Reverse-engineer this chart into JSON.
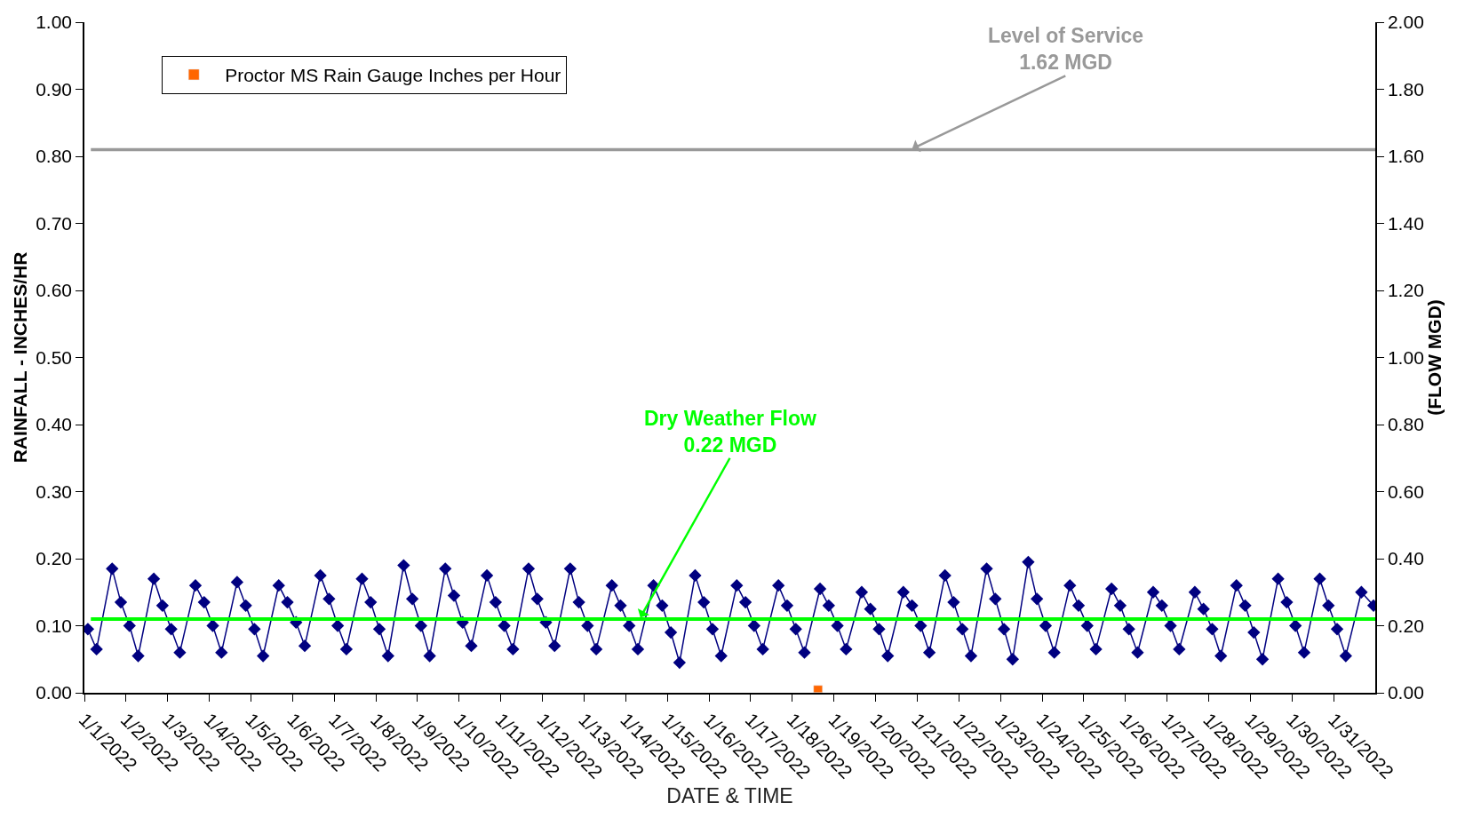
{
  "chart_data": {
    "type": "line",
    "xlabel": "DATE & TIME",
    "ylabel": "RAINFALL - INCHES/HR",
    "y2label": "(FLOW MGD)",
    "xlim": [
      "2022-01-01",
      "2022-02-01"
    ],
    "xticks": [
      {
        "value": "2022-01-01",
        "label": "1/1/2022"
      },
      {
        "value": "2022-01-02",
        "label": "1/2/2022"
      },
      {
        "value": "2022-01-03",
        "label": "1/3/2022"
      },
      {
        "value": "2022-01-04",
        "label": "1/4/2022"
      },
      {
        "value": "2022-01-05",
        "label": "1/5/2022"
      },
      {
        "value": "2022-01-06",
        "label": "1/6/2022"
      },
      {
        "value": "2022-01-07",
        "label": "1/7/2022"
      },
      {
        "value": "2022-01-08",
        "label": "1/8/2022"
      },
      {
        "value": "2022-01-09",
        "label": "1/9/2022"
      },
      {
        "value": "2022-01-10",
        "label": "1/10/2022"
      },
      {
        "value": "2022-01-11",
        "label": "1/11/2022"
      },
      {
        "value": "2022-01-12",
        "label": "1/12/2022"
      },
      {
        "value": "2022-01-13",
        "label": "1/13/2022"
      },
      {
        "value": "2022-01-14",
        "label": "1/14/2022"
      },
      {
        "value": "2022-01-15",
        "label": "1/15/2022"
      },
      {
        "value": "2022-01-16",
        "label": "1/16/2022"
      },
      {
        "value": "2022-01-17",
        "label": "1/17/2022"
      },
      {
        "value": "2022-01-18",
        "label": "1/18/2022"
      },
      {
        "value": "2022-01-19",
        "label": "1/19/2022"
      },
      {
        "value": "2022-01-20",
        "label": "1/20/2022"
      },
      {
        "value": "2022-01-21",
        "label": "1/21/2022"
      },
      {
        "value": "2022-01-22",
        "label": "1/22/2022"
      },
      {
        "value": "2022-01-23",
        "label": "1/23/2022"
      },
      {
        "value": "2022-01-24",
        "label": "1/24/2022"
      },
      {
        "value": "2022-01-25",
        "label": "1/25/2022"
      },
      {
        "value": "2022-01-26",
        "label": "1/26/2022"
      },
      {
        "value": "2022-01-27",
        "label": "1/27/2022"
      },
      {
        "value": "2022-01-28",
        "label": "1/28/2022"
      },
      {
        "value": "2022-01-29",
        "label": "1/29/2022"
      },
      {
        "value": "2022-01-30",
        "label": "1/30/2022"
      },
      {
        "value": "2022-01-31",
        "label": "1/31/2022"
      }
    ],
    "ylim": [
      0,
      1
    ],
    "yticks": [
      {
        "value": 0,
        "label": "0.00"
      },
      {
        "value": 0.1,
        "label": "0.10"
      },
      {
        "value": 0.2,
        "label": "0.20"
      },
      {
        "value": 0.3,
        "label": "0.30"
      },
      {
        "value": 0.4,
        "label": "0.40"
      },
      {
        "value": 0.5,
        "label": "0.50"
      },
      {
        "value": 0.6,
        "label": "0.60"
      },
      {
        "value": 0.7,
        "label": "0.70"
      },
      {
        "value": 0.8,
        "label": "0.80"
      },
      {
        "value": 0.9,
        "label": "0.90"
      },
      {
        "value": 1,
        "label": "1.00"
      }
    ],
    "y2lim": [
      0,
      2
    ],
    "y2ticks": [
      {
        "value": 0,
        "label": "0.00"
      },
      {
        "value": 0.2,
        "label": "0.20"
      },
      {
        "value": 0.4,
        "label": "0.40"
      },
      {
        "value": 0.6,
        "label": "0.60"
      },
      {
        "value": 0.8,
        "label": "0.80"
      },
      {
        "value": 1,
        "label": "1.00"
      },
      {
        "value": 1.2,
        "label": "1.20"
      },
      {
        "value": 1.4,
        "label": "1.40"
      },
      {
        "value": 1.6,
        "label": "1.60"
      },
      {
        "value": 1.8,
        "label": "1.80"
      },
      {
        "value": 2,
        "label": "2.00"
      }
    ],
    "legend": "top left",
    "ref_lines": [
      {
        "axis": "y2",
        "value": 1.62,
        "label": "Level of Service\n1.62 MGD",
        "color": "#999999"
      },
      {
        "axis": "y2",
        "value": 0.22,
        "label": "Dry Weather Flow\n0.22 MGD",
        "color": "#00ff00"
      }
    ],
    "series": [
      {
        "name": "Proctor MS Rain Gauge Inches per Hour",
        "type": "bar",
        "color": "#ff6600",
        "x": [
          "2022-01-18T15:00"
        ],
        "values": [
          0.01
        ]
      },
      {
        "axis": "y2",
        "color": "#000080",
        "marker": "diamond",
        "x": [
          "2022-01-01T02:00",
          "2022-01-01T07:00",
          "2022-01-01T16:00",
          "2022-01-01T21:00",
          "2022-01-02T02:00",
          "2022-01-02T07:00",
          "2022-01-02T16:00",
          "2022-01-02T21:00",
          "2022-01-03T02:00",
          "2022-01-03T07:00",
          "2022-01-03T16:00",
          "2022-01-03T21:00",
          "2022-01-04T02:00",
          "2022-01-04T07:00",
          "2022-01-04T16:00",
          "2022-01-04T21:00",
          "2022-01-05T02:00",
          "2022-01-05T07:00",
          "2022-01-05T16:00",
          "2022-01-05T21:00",
          "2022-01-06T02:00",
          "2022-01-06T07:00",
          "2022-01-06T16:00",
          "2022-01-06T21:00",
          "2022-01-07T02:00",
          "2022-01-07T07:00",
          "2022-01-07T16:00",
          "2022-01-07T21:00",
          "2022-01-08T02:00",
          "2022-01-08T07:00",
          "2022-01-08T16:00",
          "2022-01-08T21:00",
          "2022-01-09T02:00",
          "2022-01-09T07:00",
          "2022-01-09T16:00",
          "2022-01-09T21:00",
          "2022-01-10T02:00",
          "2022-01-10T07:00",
          "2022-01-10T16:00",
          "2022-01-10T21:00",
          "2022-01-11T02:00",
          "2022-01-11T07:00",
          "2022-01-11T16:00",
          "2022-01-11T21:00",
          "2022-01-12T02:00",
          "2022-01-12T07:00",
          "2022-01-12T16:00",
          "2022-01-12T21:00",
          "2022-01-13T02:00",
          "2022-01-13T07:00",
          "2022-01-13T16:00",
          "2022-01-13T21:00",
          "2022-01-14T02:00",
          "2022-01-14T07:00",
          "2022-01-14T16:00",
          "2022-01-14T21:00",
          "2022-01-15T02:00",
          "2022-01-15T07:00",
          "2022-01-15T16:00",
          "2022-01-15T21:00",
          "2022-01-16T02:00",
          "2022-01-16T07:00",
          "2022-01-16T16:00",
          "2022-01-16T21:00",
          "2022-01-17T02:00",
          "2022-01-17T07:00",
          "2022-01-17T16:00",
          "2022-01-17T21:00",
          "2022-01-18T02:00",
          "2022-01-18T07:00",
          "2022-01-18T16:00",
          "2022-01-18T21:00",
          "2022-01-19T02:00",
          "2022-01-19T07:00",
          "2022-01-19T16:00",
          "2022-01-19T21:00",
          "2022-01-20T02:00",
          "2022-01-20T07:00",
          "2022-01-20T16:00",
          "2022-01-20T21:00",
          "2022-01-21T02:00",
          "2022-01-21T07:00",
          "2022-01-21T16:00",
          "2022-01-21T21:00",
          "2022-01-22T02:00",
          "2022-01-22T07:00",
          "2022-01-22T16:00",
          "2022-01-22T21:00",
          "2022-01-23T02:00",
          "2022-01-23T07:00",
          "2022-01-23T16:00",
          "2022-01-23T21:00",
          "2022-01-24T02:00",
          "2022-01-24T07:00",
          "2022-01-24T16:00",
          "2022-01-24T21:00",
          "2022-01-25T02:00",
          "2022-01-25T07:00",
          "2022-01-25T16:00",
          "2022-01-25T21:00",
          "2022-01-26T02:00",
          "2022-01-26T07:00",
          "2022-01-26T16:00",
          "2022-01-26T21:00",
          "2022-01-27T02:00",
          "2022-01-27T07:00",
          "2022-01-27T16:00",
          "2022-01-27T21:00",
          "2022-01-28T02:00",
          "2022-01-28T07:00",
          "2022-01-28T16:00",
          "2022-01-28T21:00",
          "2022-01-29T02:00",
          "2022-01-29T07:00",
          "2022-01-29T16:00",
          "2022-01-29T21:00",
          "2022-01-30T02:00",
          "2022-01-30T07:00",
          "2022-01-30T16:00",
          "2022-01-30T21:00",
          "2022-01-31T02:00",
          "2022-01-31T07:00",
          "2022-01-31T16:00",
          "2022-01-31T23:00"
        ],
        "values": [
          0.19,
          0.13,
          0.37,
          0.27,
          0.2,
          0.11,
          0.34,
          0.26,
          0.19,
          0.12,
          0.32,
          0.27,
          0.2,
          0.12,
          0.33,
          0.26,
          0.19,
          0.11,
          0.32,
          0.27,
          0.21,
          0.14,
          0.35,
          0.28,
          0.2,
          0.13,
          0.34,
          0.27,
          0.19,
          0.11,
          0.38,
          0.28,
          0.2,
          0.11,
          0.37,
          0.29,
          0.21,
          0.14,
          0.35,
          0.27,
          0.2,
          0.13,
          0.37,
          0.28,
          0.21,
          0.14,
          0.37,
          0.27,
          0.2,
          0.13,
          0.32,
          0.26,
          0.2,
          0.13,
          0.32,
          0.26,
          0.18,
          0.09,
          0.35,
          0.27,
          0.19,
          0.11,
          0.32,
          0.27,
          0.2,
          0.13,
          0.32,
          0.26,
          0.19,
          0.12,
          0.31,
          0.26,
          0.2,
          0.13,
          0.3,
          0.25,
          0.19,
          0.11,
          0.3,
          0.26,
          0.2,
          0.12,
          0.35,
          0.27,
          0.19,
          0.11,
          0.37,
          0.28,
          0.19,
          0.1,
          0.39,
          0.28,
          0.2,
          0.12,
          0.32,
          0.26,
          0.2,
          0.13,
          0.31,
          0.26,
          0.19,
          0.12,
          0.3,
          0.26,
          0.2,
          0.13,
          0.3,
          0.25,
          0.19,
          0.11,
          0.32,
          0.26,
          0.18,
          0.1,
          0.34,
          0.27,
          0.2,
          0.12,
          0.34,
          0.26,
          0.19,
          0.11,
          0.3,
          0.26
        ]
      }
    ]
  }
}
